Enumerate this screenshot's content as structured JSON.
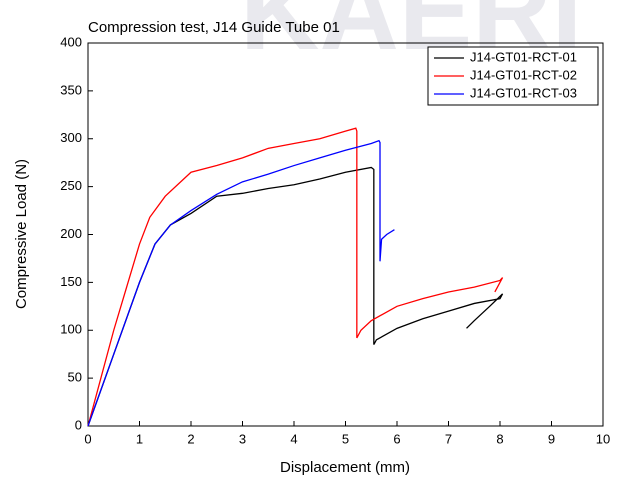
{
  "chart_data": {
    "type": "line",
    "title": "Compression test, J14 Guide Tube 01",
    "watermark": "KAERI",
    "xlabel": "Displacement (mm)",
    "ylabel": "Compressive Load (N)",
    "xlim": [
      0,
      10
    ],
    "xticks": [
      0,
      1,
      2,
      3,
      4,
      5,
      6,
      7,
      8,
      9,
      10
    ],
    "ylim": [
      0,
      400
    ],
    "yticks": [
      0,
      50,
      100,
      150,
      200,
      250,
      300,
      350,
      400
    ],
    "legend": "upper right",
    "series": [
      {
        "name": "J14-GT01-RCT-01",
        "color": "#000000",
        "x": [
          0,
          0.5,
          1,
          1.3,
          1.6,
          2,
          2.5,
          3,
          3.5,
          4,
          4.5,
          5,
          5.5,
          5.55,
          5.55,
          5.6,
          6,
          6.5,
          7,
          7.5,
          8,
          8.05,
          7.8,
          7.5,
          7.35
        ],
        "values": [
          0,
          75,
          150,
          190,
          210,
          222,
          240,
          243,
          248,
          252,
          258,
          265,
          270,
          268,
          85,
          90,
          102,
          112,
          120,
          128,
          133,
          138,
          125,
          110,
          102
        ]
      },
      {
        "name": "J14-GT01-RCT-02",
        "color": "#ff0000",
        "x": [
          0,
          0.5,
          1,
          1.2,
          1.5,
          2,
          2.5,
          3,
          3.5,
          4,
          4.5,
          5,
          5.2,
          5.22,
          5.22,
          5.3,
          5.5,
          6,
          6.5,
          7,
          7.5,
          8,
          8.05,
          7.95,
          7.9
        ],
        "values": [
          0,
          100,
          190,
          218,
          240,
          265,
          272,
          280,
          290,
          295,
          300,
          308,
          311,
          308,
          92,
          100,
          110,
          125,
          133,
          140,
          145,
          152,
          155,
          145,
          140
        ]
      },
      {
        "name": "J14-GT01-RCT-03",
        "color": "#0000ff",
        "x": [
          0,
          0.5,
          1,
          1.3,
          1.6,
          2,
          2.5,
          3,
          3.5,
          4,
          4.5,
          5,
          5.5,
          5.65,
          5.67,
          5.67,
          5.7,
          5.8,
          5.95
        ],
        "values": [
          0,
          75,
          150,
          190,
          210,
          225,
          242,
          255,
          263,
          272,
          280,
          288,
          295,
          298,
          296,
          172,
          195,
          200,
          205
        ]
      }
    ]
  }
}
